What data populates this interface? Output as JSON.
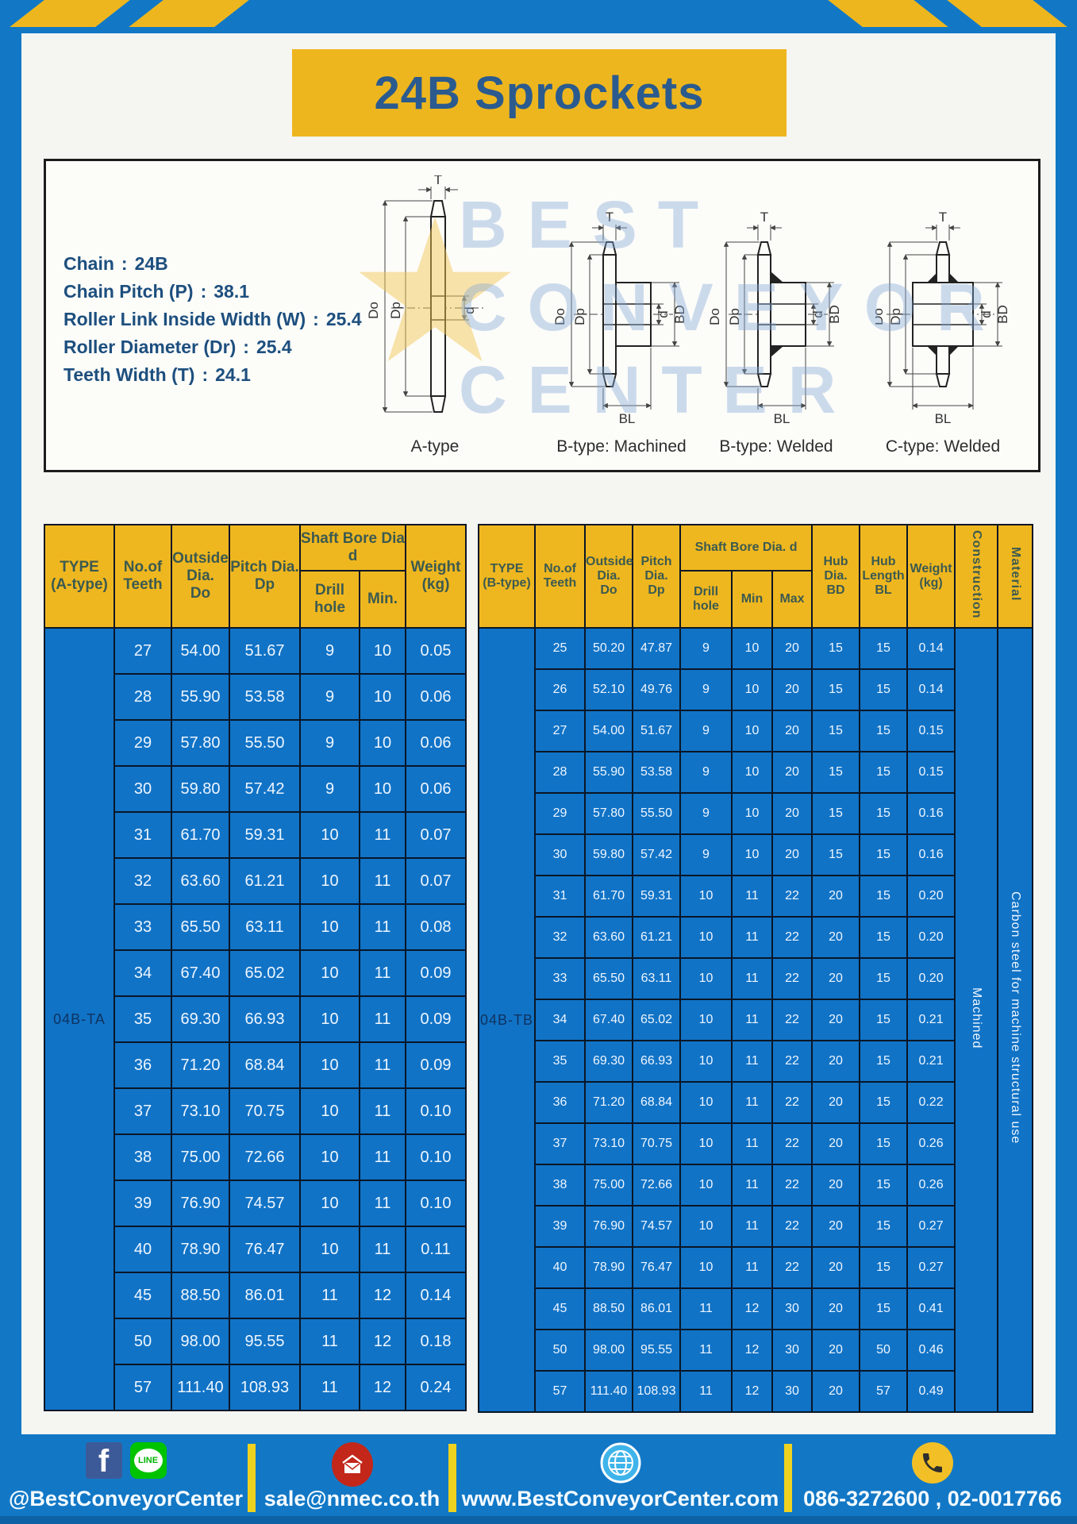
{
  "title": {
    "text": "24B Sprockets"
  },
  "specs": {
    "sep": ":",
    "lines": [
      {
        "label": "Chain",
        "value": "24B"
      },
      {
        "label": "Chain Pitch (P)",
        "value": "38.1"
      },
      {
        "label": "Roller Link Inside Width (W)",
        "value": "25.4"
      },
      {
        "label": "Roller Diameter (Dr)",
        "value": "25.4"
      },
      {
        "label": "Teeth Width (T)",
        "value": "24.1"
      }
    ]
  },
  "diagram": {
    "captions": [
      "A-type",
      "B-type: Machined",
      "B-type: Welded",
      "C-type: Welded"
    ],
    "dims": {
      "T": "T",
      "Do": "Do",
      "Dp": "Dp",
      "d": "d",
      "BD": "BD",
      "BL": "BL"
    },
    "watermark": [
      "BEST",
      "CONVEYOR",
      "CENTER"
    ],
    "watermark_star": "★"
  },
  "left_table": {
    "headers": {
      "type": "TYPE\n(A-type)",
      "teeth": "No.of\nTeeth",
      "outside": "Outside\nDia.\nDo",
      "pitch": "Pitch Dia.\nDp",
      "shaft_bore": "Shaft Bore Dia d",
      "drill": "Drill hole",
      "min": "Min.",
      "weight": "Weight\n(kg)"
    },
    "type_label": "04B-TA",
    "rows": [
      [
        27,
        "54.00",
        "51.67",
        9,
        10,
        "0.05"
      ],
      [
        28,
        "55.90",
        "53.58",
        9,
        10,
        "0.06"
      ],
      [
        29,
        "57.80",
        "55.50",
        9,
        10,
        "0.06"
      ],
      [
        30,
        "59.80",
        "57.42",
        9,
        10,
        "0.06"
      ],
      [
        31,
        "61.70",
        "59.31",
        10,
        11,
        "0.07"
      ],
      [
        32,
        "63.60",
        "61.21",
        10,
        11,
        "0.07"
      ],
      [
        33,
        "65.50",
        "63.11",
        10,
        11,
        "0.08"
      ],
      [
        34,
        "67.40",
        "65.02",
        10,
        11,
        "0.09"
      ],
      [
        35,
        "69.30",
        "66.93",
        10,
        11,
        "0.09"
      ],
      [
        36,
        "71.20",
        "68.84",
        10,
        11,
        "0.09"
      ],
      [
        37,
        "73.10",
        "70.75",
        10,
        11,
        "0.10"
      ],
      [
        38,
        "75.00",
        "72.66",
        10,
        11,
        "0.10"
      ],
      [
        39,
        "76.90",
        "74.57",
        10,
        11,
        "0.10"
      ],
      [
        40,
        "78.90",
        "76.47",
        10,
        11,
        "0.11"
      ],
      [
        45,
        "88.50",
        "86.01",
        11,
        12,
        "0.14"
      ],
      [
        50,
        "98.00",
        "95.55",
        11,
        12,
        "0.18"
      ],
      [
        57,
        "111.40",
        "108.93",
        11,
        12,
        "0.24"
      ]
    ]
  },
  "right_table": {
    "headers": {
      "type": "TYPE\n(B-type)",
      "teeth": "No.of\nTeeth",
      "outside": "Outside\nDia.\nDo",
      "pitch": "Pitch\nDia.\nDp",
      "shaft_bore": "Shaft Bore Dia. d",
      "drill": "Drill hole",
      "min": "Min",
      "max": "Max",
      "hub_dia": "Hub\nDia.\nBD",
      "hub_length": "Hub\nLength\nBL",
      "weight": "Weight\n(kg)",
      "construction": "Construction",
      "material": "Material"
    },
    "type_label": "04B-TB",
    "construction_value": "Machined",
    "material_value": "Carbon steel for machine structural use",
    "rows": [
      [
        25,
        "50.20",
        "47.87",
        9,
        10,
        20,
        15,
        15,
        "0.14"
      ],
      [
        26,
        "52.10",
        "49.76",
        9,
        10,
        20,
        15,
        15,
        "0.14"
      ],
      [
        27,
        "54.00",
        "51.67",
        9,
        10,
        20,
        15,
        15,
        "0.15"
      ],
      [
        28,
        "55.90",
        "53.58",
        9,
        10,
        20,
        15,
        15,
        "0.15"
      ],
      [
        29,
        "57.80",
        "55.50",
        9,
        10,
        20,
        15,
        15,
        "0.16"
      ],
      [
        30,
        "59.80",
        "57.42",
        9,
        10,
        20,
        15,
        15,
        "0.16"
      ],
      [
        31,
        "61.70",
        "59.31",
        10,
        11,
        22,
        20,
        15,
        "0.20"
      ],
      [
        32,
        "63.60",
        "61.21",
        10,
        11,
        22,
        20,
        15,
        "0.20"
      ],
      [
        33,
        "65.50",
        "63.11",
        10,
        11,
        22,
        20,
        15,
        "0.20"
      ],
      [
        34,
        "67.40",
        "65.02",
        10,
        11,
        22,
        20,
        15,
        "0.21"
      ],
      [
        35,
        "69.30",
        "66.93",
        10,
        11,
        22,
        20,
        15,
        "0.21"
      ],
      [
        36,
        "71.20",
        "68.84",
        10,
        11,
        22,
        20,
        15,
        "0.22"
      ],
      [
        37,
        "73.10",
        "70.75",
        10,
        11,
        22,
        20,
        15,
        "0.26"
      ],
      [
        38,
        "75.00",
        "72.66",
        10,
        11,
        22,
        20,
        15,
        "0.26"
      ],
      [
        39,
        "76.90",
        "74.57",
        10,
        11,
        22,
        20,
        15,
        "0.27"
      ],
      [
        40,
        "78.90",
        "76.47",
        10,
        11,
        22,
        20,
        15,
        "0.27"
      ],
      [
        45,
        "88.50",
        "86.01",
        11,
        12,
        30,
        20,
        15,
        "0.41"
      ],
      [
        50,
        "98.00",
        "95.55",
        11,
        12,
        30,
        20,
        50,
        "0.46"
      ],
      [
        57,
        "111.40",
        "108.93",
        11,
        12,
        30,
        20,
        57,
        "0.49"
      ]
    ]
  },
  "footer": {
    "social": {
      "facebook_label": "f",
      "line_label": "LINE",
      "text": "@BestConveyorCenter"
    },
    "email": {
      "text": "sale@nmec.co.th"
    },
    "website": {
      "text": "www.BestConveyorCenter.com"
    },
    "phone": {
      "text": "086-3272600 , 02-0017766"
    }
  },
  "colors": {
    "frame_blue": "#1278c6",
    "cell_blue": "#1173c6",
    "accent_yellow": "#eeb61e",
    "title_text": "#2b5b8e",
    "table_header_text": "#3c5a50",
    "facebook_blue": "#3d5a98",
    "line_green": "#00c300",
    "envelope_red": "#c2271a",
    "globe_blue": "#3fb4ea",
    "phone_yellow": "#f2c026"
  }
}
